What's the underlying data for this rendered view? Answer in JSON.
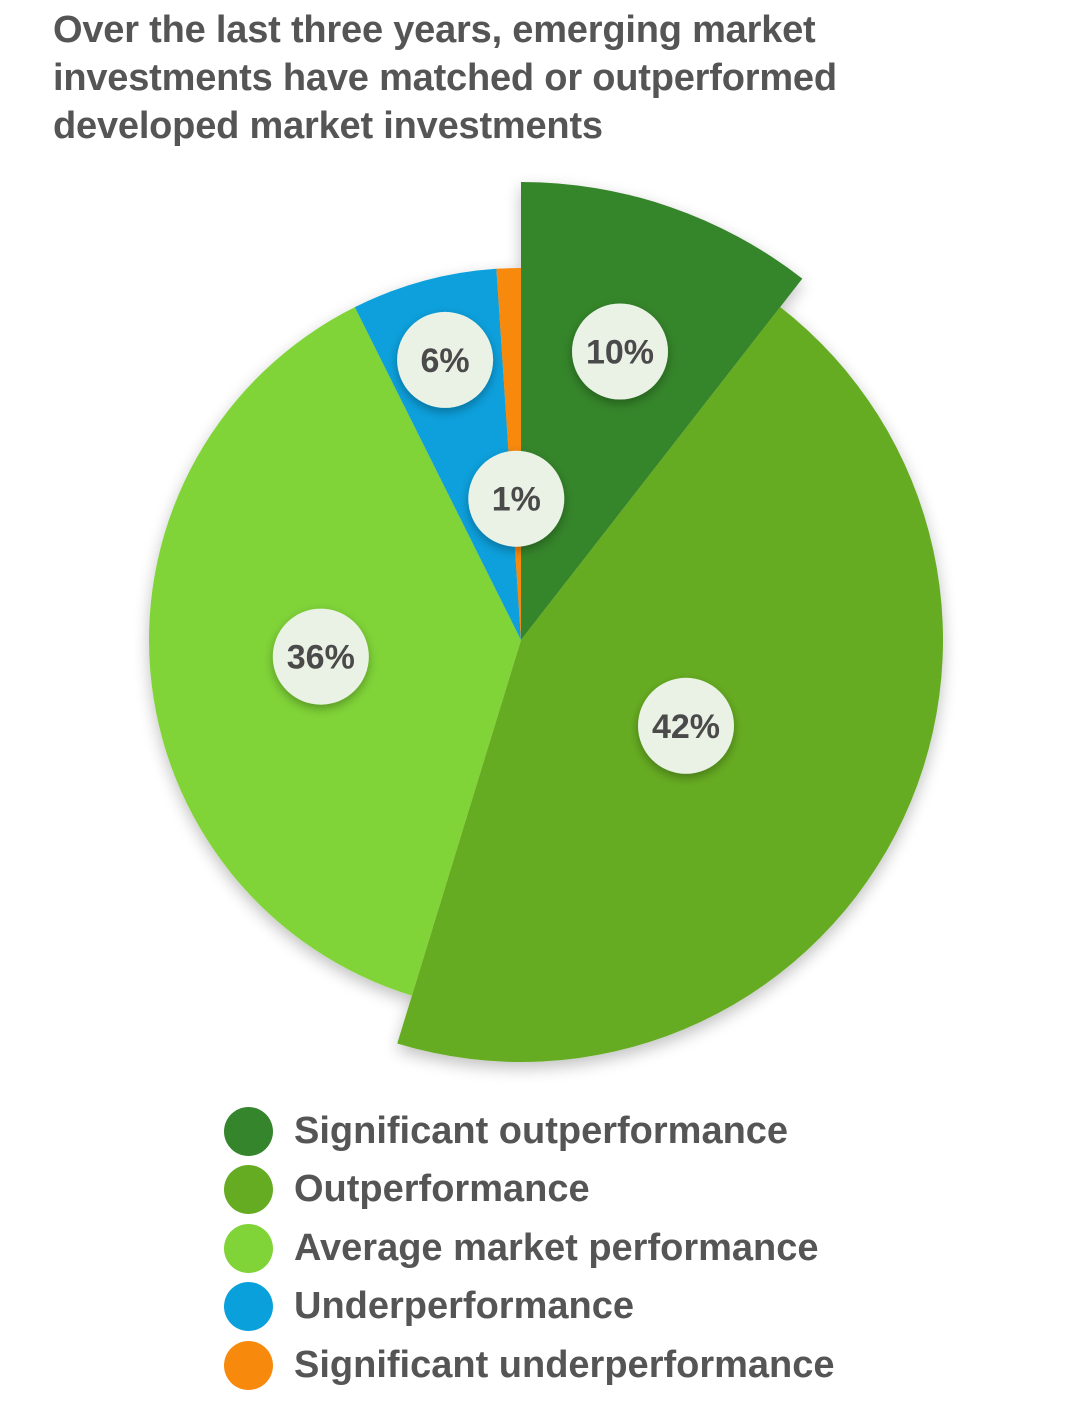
{
  "chart_data": {
    "type": "pie",
    "title": "Over the last three years, emerging market investments have matched or outperformed developed market investments",
    "slices": [
      {
        "name": "Significant outperformance",
        "value": 10,
        "label": "10%",
        "color": "#35852c",
        "exploded": true
      },
      {
        "name": "Outperformance",
        "value": 42,
        "label": "42%",
        "color": "#66ac23",
        "exploded": true
      },
      {
        "name": "Average market performance",
        "value": 36,
        "label": "36%",
        "color": "#80d437",
        "exploded": false
      },
      {
        "name": "Underperformance",
        "value": 6,
        "label": "6%",
        "color": "#0aa0dc",
        "exploded": false
      },
      {
        "name": "Significant underperformance",
        "value": 1,
        "label": "1%",
        "color": "#f7890d",
        "exploded": false
      }
    ],
    "legend_position": "bottom"
  }
}
